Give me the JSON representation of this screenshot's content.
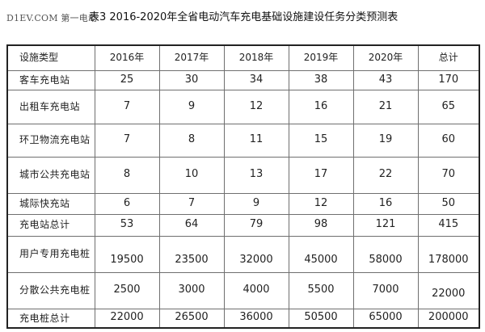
{
  "watermark": "D1EV.COM 第一电动",
  "title": "表3 2016-2020年全省电动汽车充电基础设施建设任务分类预测表",
  "table": {
    "headers": [
      "设施类型",
      "2016年",
      "2017年",
      "2018年",
      "2019年",
      "2020年",
      "总计"
    ],
    "rows": [
      {
        "type": "客车充电站",
        "values": [
          "25",
          "30",
          "34",
          "38",
          "43",
          "170"
        ]
      },
      {
        "type": "出租车充电站",
        "values": [
          "7",
          "9",
          "12",
          "16",
          "21",
          "65"
        ]
      },
      {
        "type": "环卫物流充电站",
        "values": [
          "7",
          "8",
          "11",
          "15",
          "19",
          "60"
        ]
      },
      {
        "type": "城市公共充电站",
        "values": [
          "8",
          "10",
          "13",
          "17",
          "22",
          "70"
        ]
      },
      {
        "type": "城际快充站",
        "values": [
          "6",
          "7",
          "9",
          "12",
          "16",
          "50"
        ]
      },
      {
        "type": "充电站总计",
        "values": [
          "53",
          "64",
          "79",
          "98",
          "121",
          "415"
        ]
      },
      {
        "type": "用户专用充电桩",
        "values": [
          "19500",
          "23500",
          "32000",
          "45000",
          "58000",
          "178000"
        ]
      },
      {
        "type": "分散公共充电桩",
        "values": [
          "2500",
          "3000",
          "4000",
          "5500",
          "7000",
          "22000"
        ]
      },
      {
        "type": "充电桩总计",
        "values": [
          "22000",
          "26500",
          "36000",
          "50500",
          "65000",
          "200000"
        ]
      }
    ]
  }
}
